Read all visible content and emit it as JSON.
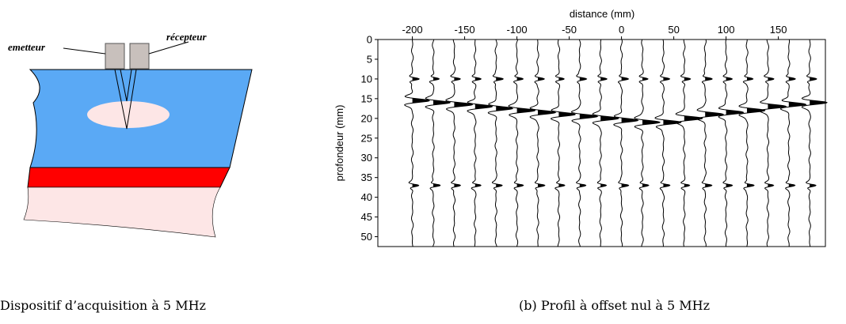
{
  "diagram": {
    "labels": [
      "emetteur",
      "récepteur"
    ]
  },
  "captions": [
    "Dispositif d’acquisition à 5 MHz",
    "(b) Profil à offset nul à 5 MHz"
  ],
  "chart_data": {
    "type": "wiggle",
    "xlabel": "distance (mm)",
    "ylabel": "profondeur (mm)",
    "x": [
      -200,
      -180,
      -160,
      -140,
      -120,
      -100,
      -80,
      -60,
      -40,
      -20,
      0,
      20,
      40,
      60,
      80,
      100,
      120,
      140,
      160,
      180
    ],
    "events": [
      {
        "depths": [
          10,
          10,
          10,
          10,
          10,
          10,
          10,
          10,
          10,
          10,
          10,
          10,
          10,
          10,
          10,
          10,
          10,
          10,
          10,
          10
        ]
      },
      {
        "depths": [
          15.5,
          16,
          16.5,
          17,
          17.5,
          18,
          18.5,
          19,
          19.5,
          20,
          20.5,
          21,
          21,
          20,
          19,
          18.5,
          18,
          17,
          16.5,
          16
        ]
      },
      {
        "depths": [
          37,
          37,
          37,
          37,
          37,
          37,
          37,
          37,
          37,
          37,
          37,
          37,
          37,
          37,
          37,
          37,
          37,
          37,
          37,
          37
        ]
      }
    ],
    "xlim": [
      -233,
      195
    ],
    "ylim": [
      0,
      52.5
    ],
    "xticks": [
      -200,
      -150,
      -100,
      -50,
      0,
      50,
      100,
      150
    ],
    "yticks": [
      0,
      5,
      10,
      15,
      20,
      25,
      30,
      35,
      40,
      45,
      50
    ],
    "xaxis_position": "top",
    "yaxis_inverted": true,
    "color": "#000000"
  }
}
